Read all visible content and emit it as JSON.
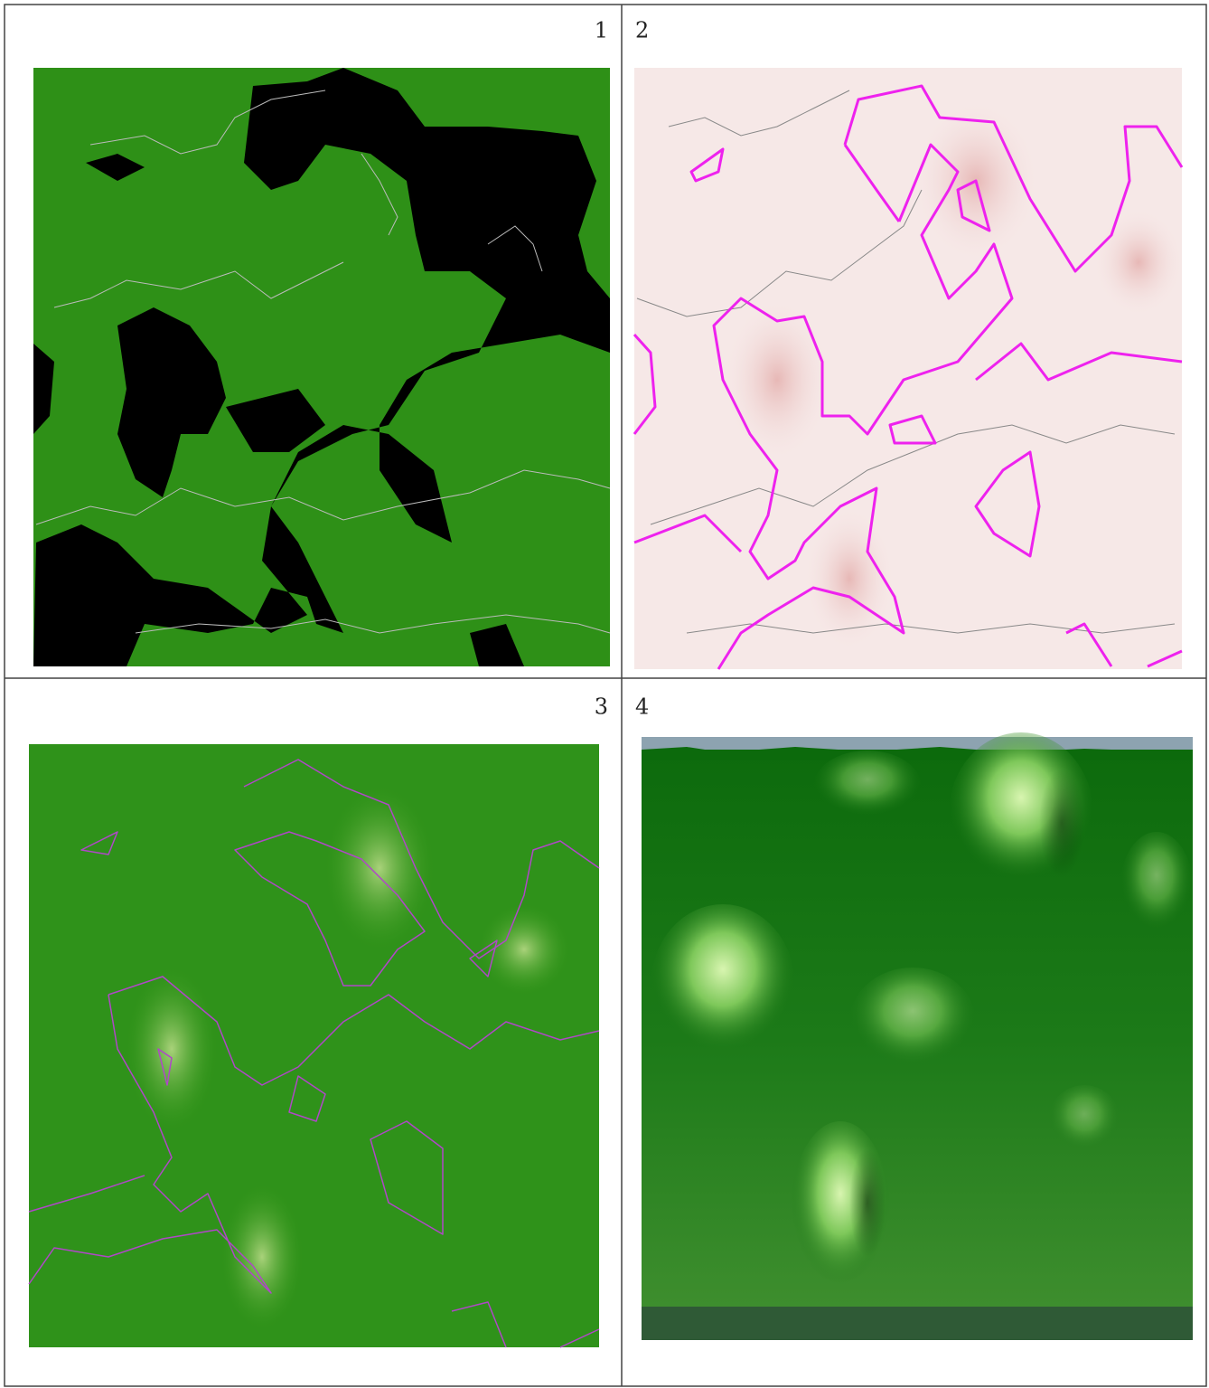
{
  "panels": [
    {
      "label": "1"
    },
    {
      "label": "2"
    },
    {
      "label": "3"
    },
    {
      "label": "4"
    }
  ]
}
